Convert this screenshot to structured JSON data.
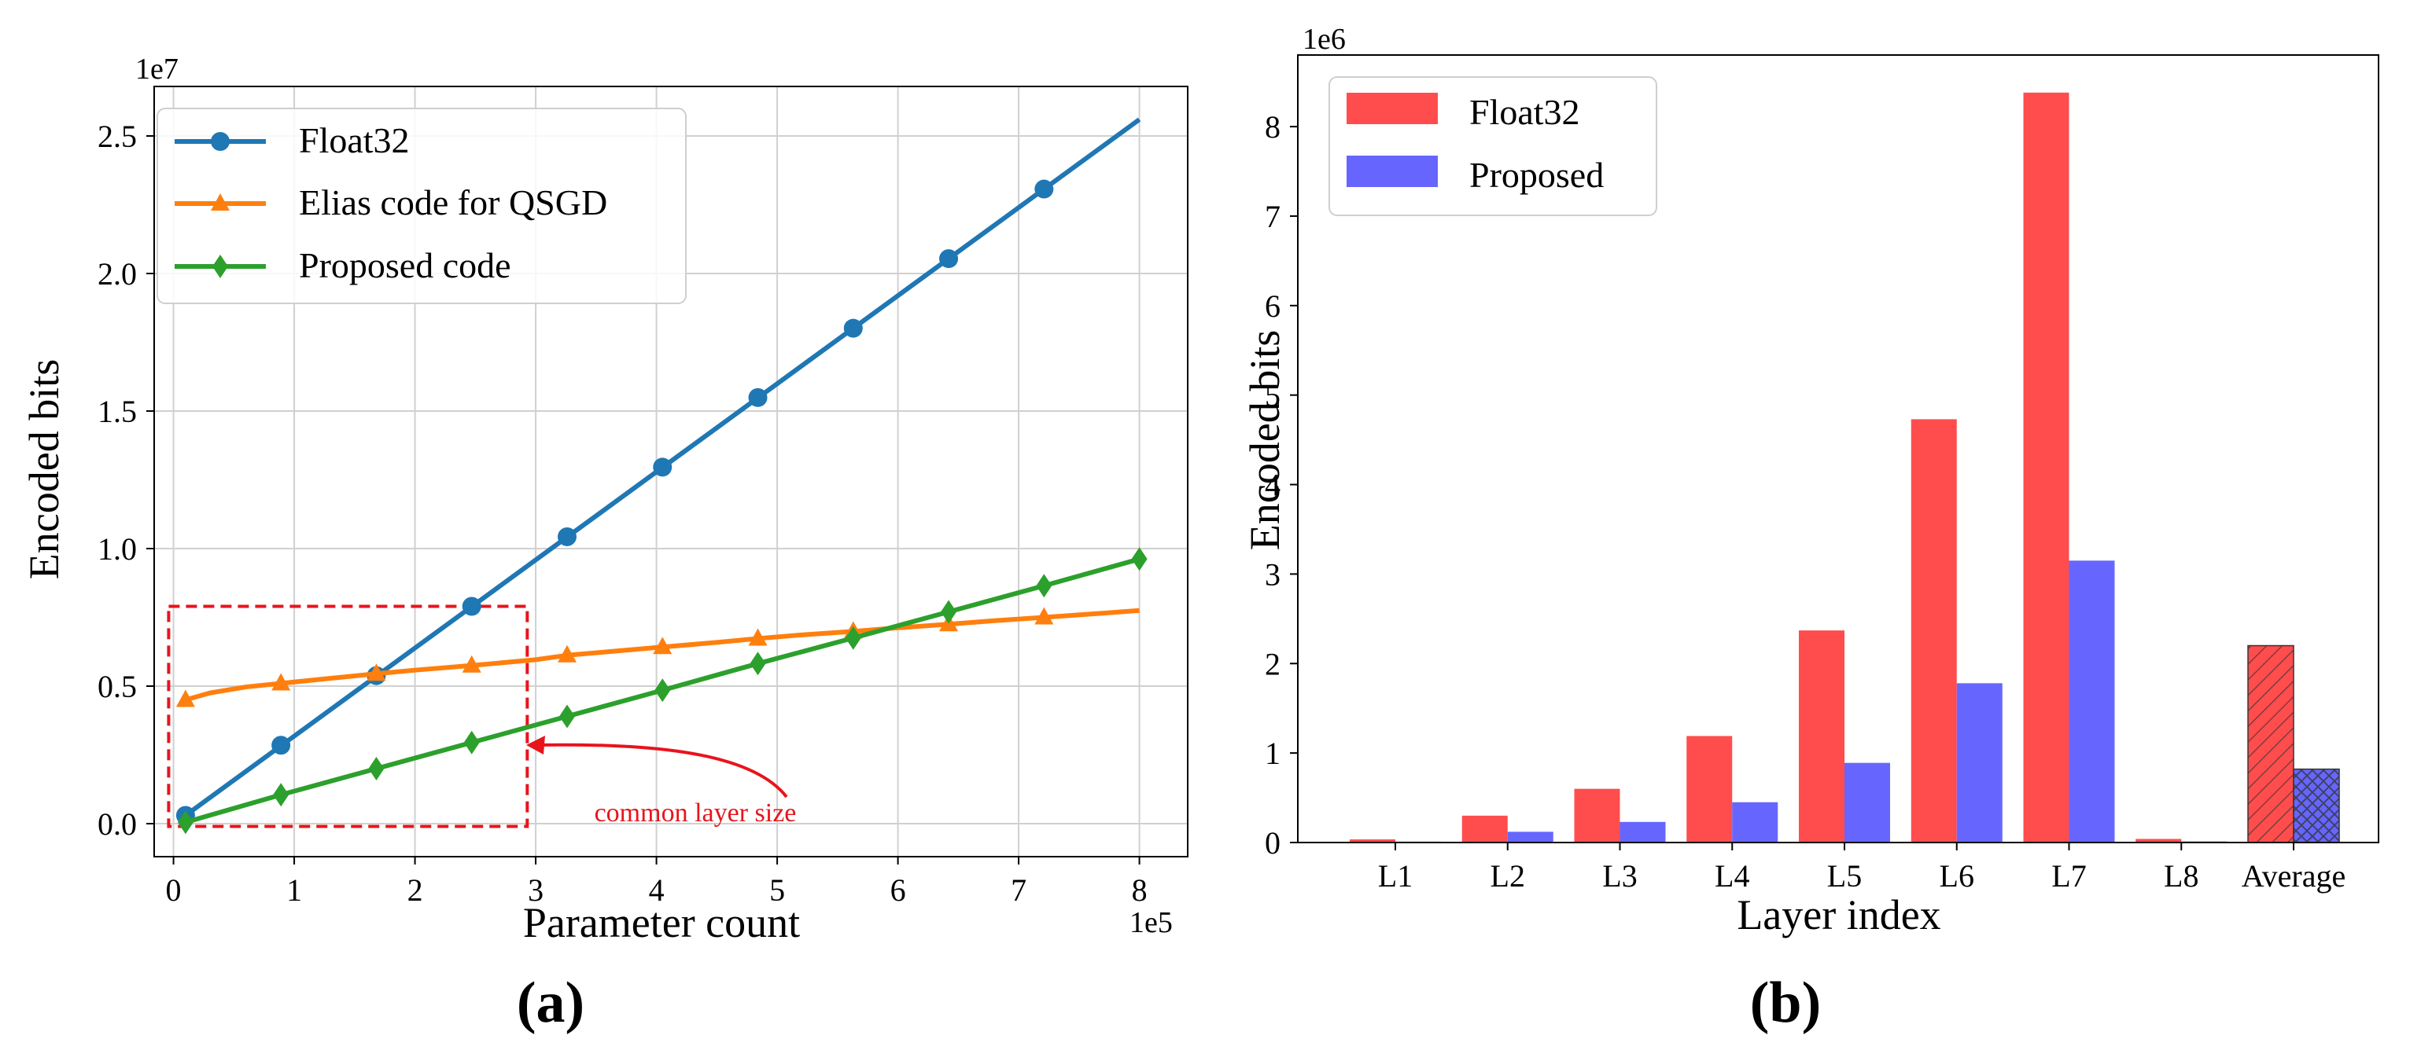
{
  "colors": {
    "float32_line": "#1f77b4",
    "elias": "#ff7f0e",
    "proposed_line": "#2ca02c",
    "float32_bar": "#ff4d4d",
    "proposed_bar": "#6666ff",
    "highlight": "#e8141c",
    "grid": "#d0d0d0",
    "axis": "#000000"
  },
  "panel_labels": {
    "a": "(a)",
    "b": "(b)"
  },
  "annotation": {
    "text": "common layer size"
  },
  "chart_data": [
    {
      "type": "line",
      "title": "",
      "xlabel": "Parameter count",
      "ylabel": "Encoded bits",
      "x_offset_text": "1e5",
      "y_offset_text": "1e7",
      "xlim": [
        -0.16,
        8.4
      ],
      "ylim": [
        -0.12,
        2.68
      ],
      "xticks": [
        0,
        1,
        2,
        3,
        4,
        5,
        6,
        7,
        8
      ],
      "xtick_labels": [
        "0",
        "1",
        "2",
        "3",
        "4",
        "5",
        "6",
        "7",
        "8"
      ],
      "yticks": [
        0.0,
        0.5,
        1.0,
        1.5,
        2.0,
        2.5
      ],
      "ytick_labels": [
        "0.0",
        "0.5",
        "1.0",
        "1.5",
        "2.0",
        "2.5"
      ],
      "grid": true,
      "legend_position": "top-left",
      "series": [
        {
          "name": "Float32",
          "marker": "circle",
          "line": [
            [
              0.1,
              0.03
            ],
            [
              8.0,
              2.56
            ]
          ],
          "marker_x": [
            0.1,
            0.89,
            1.68,
            2.47,
            3.26,
            4.05,
            4.84,
            5.63,
            6.42,
            7.21
          ],
          "marker_y": [
            0.03,
            0.285,
            0.538,
            0.79,
            1.043,
            1.296,
            1.549,
            1.801,
            2.054,
            2.307
          ]
        },
        {
          "name": "Elias code for QSGD",
          "marker": "triangle",
          "x": [
            0.1,
            0.3,
            0.6,
            0.89,
            1.2,
            1.68,
            2.0,
            2.47,
            3.0,
            3.26,
            3.6,
            4.05,
            4.5,
            4.84,
            5.2,
            5.63,
            6.0,
            6.42,
            6.8,
            7.21,
            7.6,
            8.0
          ],
          "y": [
            0.45,
            0.475,
            0.497,
            0.51,
            0.524,
            0.545,
            0.558,
            0.575,
            0.596,
            0.612,
            0.625,
            0.642,
            0.659,
            0.673,
            0.686,
            0.699,
            0.712,
            0.725,
            0.738,
            0.75,
            0.762,
            0.775
          ],
          "marker_x": [
            0.1,
            0.89,
            1.68,
            2.47,
            3.26,
            4.05,
            4.84,
            5.63,
            6.42,
            7.21
          ],
          "marker_y": [
            0.45,
            0.51,
            0.545,
            0.575,
            0.612,
            0.642,
            0.673,
            0.699,
            0.725,
            0.75
          ]
        },
        {
          "name": "Proposed code",
          "marker": "diamond",
          "x": [
            0.1,
            0.89,
            1.68,
            2.47,
            3.26,
            4.05,
            4.84,
            5.63,
            6.42,
            7.21,
            8.0
          ],
          "y": [
            0.005,
            0.105,
            0.2,
            0.295,
            0.39,
            0.485,
            0.582,
            0.675,
            0.77,
            0.865,
            0.962
          ]
        }
      ],
      "highlight_region": {
        "x": [
          -0.04,
          2.93
        ],
        "y": [
          -0.01,
          0.79
        ]
      }
    },
    {
      "type": "bar",
      "title": "",
      "xlabel": "Layer index",
      "ylabel": "Encoded bits",
      "y_offset_text": "1e6",
      "ylim": [
        0,
        8.8
      ],
      "yticks": [
        0,
        1,
        2,
        3,
        4,
        5,
        6,
        7,
        8
      ],
      "ytick_labels": [
        "0",
        "1",
        "2",
        "3",
        "4",
        "5",
        "6",
        "7",
        "8"
      ],
      "grid": false,
      "legend_position": "top-left",
      "categories": [
        "L1",
        "L2",
        "L3",
        "L4",
        "L5",
        "L6",
        "L7",
        "L8",
        "Average"
      ],
      "series": [
        {
          "name": "Float32",
          "values": [
            0.035,
            0.3,
            0.6,
            1.19,
            2.37,
            4.73,
            8.38,
            0.04,
            2.2
          ]
        },
        {
          "name": "Proposed",
          "values": [
            0.01,
            0.12,
            0.23,
            0.45,
            0.89,
            1.78,
            3.15,
            0.012,
            0.82
          ]
        }
      ],
      "hatched_category": "Average"
    }
  ]
}
